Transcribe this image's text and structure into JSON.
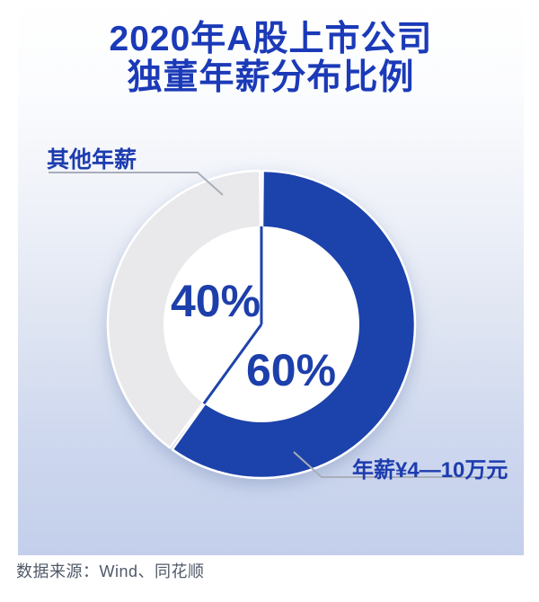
{
  "header": {
    "title_line1": "2020年A股上市公司",
    "title_line2": "独董年薪分布比例"
  },
  "chart_data": {
    "type": "pie",
    "subtype": "donut",
    "title": "2020年A股上市公司独董年薪分布比例",
    "start_angle": "12-o'clock, clockwise",
    "legend_position": "callout-labels",
    "slices": [
      {
        "label": "年薪¥4—10万元",
        "value": 60,
        "pct_label": "60%",
        "color": "#1e43ab"
      },
      {
        "label": "其他年薪",
        "value": 40,
        "pct_label": "40%",
        "color": "#e9e9ec"
      }
    ]
  },
  "callouts": {
    "other": "其他年薪",
    "range": "年薪¥4—10万元"
  },
  "footer": {
    "source": "数据来源：Wind、同花顺"
  },
  "colors": {
    "accent_blue": "#1e43ab",
    "title_blue": "#1b3ab8",
    "slice_gray": "#e9e9ec",
    "bg_bottom": "#c4cfeb",
    "leader_gray": "#a9aeb8",
    "source_gray": "#4f5968",
    "hole_white": "#ffffff"
  }
}
